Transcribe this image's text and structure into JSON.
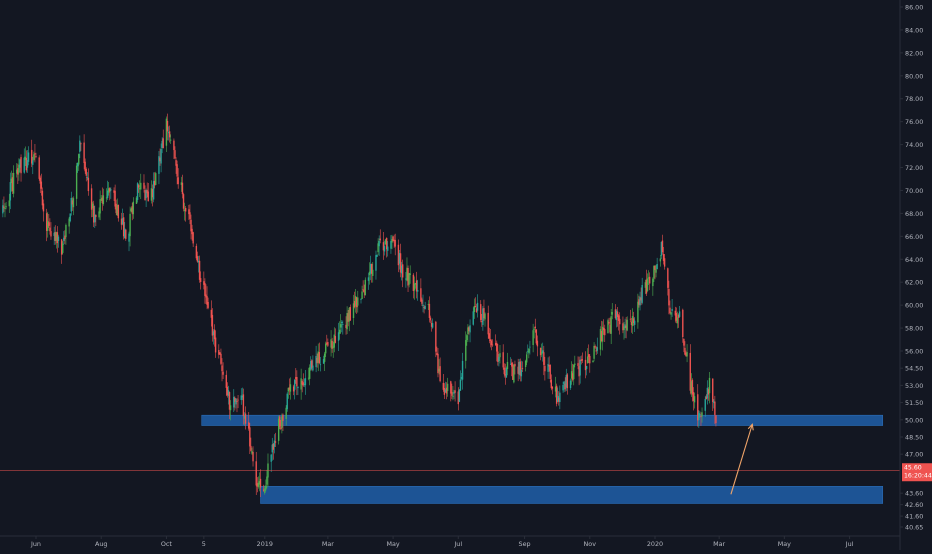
{
  "chart_data": {
    "type": "candlestick",
    "title": "",
    "y_axis": {
      "position": "right",
      "ticks": [
        "86.00",
        "84.00",
        "82.00",
        "80.00",
        "78.00",
        "76.00",
        "74.00",
        "72.00",
        "70.00",
        "68.00",
        "66.00",
        "64.00",
        "62.00",
        "60.00",
        "58.00",
        "56.00",
        "54.50",
        "53.00",
        "51.50",
        "50.00",
        "48.50",
        "47.00",
        "45.60",
        "43.60",
        "42.60",
        "41.60",
        "40.65"
      ],
      "tick_values": [
        86,
        84,
        82,
        80,
        78,
        76,
        74,
        72,
        70,
        68,
        66,
        64,
        62,
        60,
        58,
        56,
        54.5,
        53,
        51.5,
        50,
        48.5,
        47,
        45.6,
        43.6,
        42.6,
        41.6,
        40.65
      ],
      "range": [
        40.2,
        86.6
      ]
    },
    "x_axis": {
      "labels": [
        "Jun",
        "Aug",
        "Oct",
        "5",
        "2019",
        "Mar",
        "May",
        "Jul",
        "Sep",
        "Nov",
        "2020",
        "Mar",
        "May",
        "Jul"
      ],
      "label_dates": [
        "2018-06-01",
        "2018-08-01",
        "2018-10-01",
        "2018-11-05",
        "2019-01-01",
        "2019-03-01",
        "2019-05-01",
        "2019-07-01",
        "2019-09-01",
        "2019-11-01",
        "2020-01-01",
        "2020-03-01",
        "2020-05-01",
        "2020-07-01"
      ],
      "range": [
        "2018-05-01",
        "2020-08-15"
      ]
    },
    "price_path": {
      "dates": [
        "2018-05-01",
        "2018-05-15",
        "2018-06-01",
        "2018-06-10",
        "2018-06-25",
        "2018-07-05",
        "2018-07-12",
        "2018-07-25",
        "2018-08-10",
        "2018-08-25",
        "2018-09-05",
        "2018-09-15",
        "2018-09-25",
        "2018-10-01",
        "2018-10-05",
        "2018-10-15",
        "2018-10-25",
        "2018-11-05",
        "2018-11-15",
        "2018-11-25",
        "2018-12-01",
        "2018-12-10",
        "2018-12-20",
        "2018-12-25",
        "2019-01-01",
        "2019-01-10",
        "2019-01-25",
        "2019-02-10",
        "2019-02-25",
        "2019-03-15",
        "2019-04-01",
        "2019-04-15",
        "2019-04-30",
        "2019-05-10",
        "2019-05-25",
        "2019-06-05",
        "2019-06-15",
        "2019-06-30",
        "2019-07-10",
        "2019-07-20",
        "2019-08-01",
        "2019-08-10",
        "2019-08-20",
        "2019-09-01",
        "2019-09-10",
        "2019-09-20",
        "2019-10-01",
        "2019-10-15",
        "2019-10-30",
        "2019-11-10",
        "2019-11-25",
        "2019-12-10",
        "2019-12-20",
        "2020-01-01",
        "2020-01-08",
        "2020-01-15",
        "2020-01-25",
        "2020-02-05",
        "2020-02-12",
        "2020-02-18",
        "2020-02-22",
        "2020-02-25",
        "2020-02-28",
        "2020-03-03"
      ],
      "values": [
        68,
        72,
        73,
        67,
        65,
        69,
        74.5,
        68,
        70,
        66,
        71,
        69,
        73,
        75.5,
        74,
        70,
        66,
        61,
        57,
        53,
        51,
        52,
        47,
        44.5,
        44.2,
        48,
        53,
        54,
        56,
        58,
        61,
        64.5,
        66,
        63,
        61,
        59,
        53,
        51.5,
        58,
        60,
        57,
        55,
        54,
        55,
        58,
        55,
        52,
        54,
        55,
        57,
        59,
        58,
        61,
        63,
        65,
        60,
        59,
        52,
        50,
        52,
        54,
        51,
        48,
        46
      ]
    },
    "current_price": {
      "value": "45.60",
      "countdown": "16:20:44",
      "color": "#ef5350"
    },
    "zones": [
      {
        "start": "2018-11-03",
        "end": "2020-08-01",
        "low": 49.5,
        "high": 50.4,
        "color": "#1e5aa0"
      },
      {
        "start": "2018-12-28",
        "end": "2020-08-01",
        "low": 42.7,
        "high": 44.2,
        "color": "#1e5aa0"
      }
    ],
    "annotation_arrow": {
      "from": {
        "date": "2020-03-12",
        "value": 43.5
      },
      "to": {
        "date": "2020-04-01",
        "value": 49.6
      },
      "color": "#f0a469"
    },
    "colors": {
      "up": "#26a69a",
      "up_alt": "#4caf50",
      "down": "#ef5350",
      "background": "#131722",
      "axis_text": "#b2b5be",
      "border": "#2a2e39"
    }
  }
}
